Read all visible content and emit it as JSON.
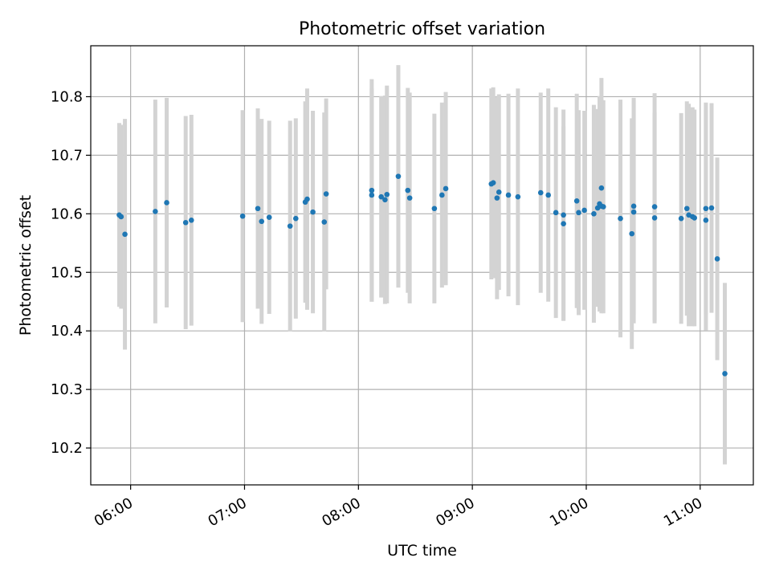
{
  "chart_data": {
    "type": "scatter",
    "title": "Photometric offset variation",
    "xlabel": "UTC time",
    "ylabel": "Photometric offset",
    "x_ticks": [
      "06:00",
      "07:00",
      "08:00",
      "09:00",
      "10:00",
      "11:00"
    ],
    "x_tick_hours": [
      6,
      7,
      8,
      9,
      10,
      11
    ],
    "y_ticks": [
      10.2,
      10.3,
      10.4,
      10.5,
      10.6,
      10.7,
      10.8
    ],
    "y_tick_labels": [
      "10.2",
      "10.3",
      "10.4",
      "10.5",
      "10.6",
      "10.7",
      "10.8"
    ],
    "xlim": [
      "05:39",
      "11:28"
    ],
    "ylim": [
      10.137,
      10.887
    ],
    "grid": true,
    "colors": {
      "marker": "#1f77b4",
      "errorbar": "#d3d3d3",
      "grid": "#b0b0b0"
    },
    "series": [
      {
        "x": [
          "05:54",
          "05:55",
          "05:57",
          "06:13",
          "06:19",
          "06:29",
          "06:32",
          "06:59",
          "07:07",
          "07:09",
          "07:13",
          "07:24",
          "07:27",
          "07:32",
          "07:33",
          "07:36",
          "07:42",
          "07:43",
          "08:07",
          "08:07",
          "08:12",
          "08:14",
          "08:15",
          "08:21",
          "08:26",
          "08:27",
          "08:40",
          "08:44",
          "08:46",
          "09:10",
          "09:11",
          "09:13",
          "09:14",
          "09:19",
          "09:24",
          "09:36",
          "09:40",
          "09:44",
          "09:48",
          "09:48",
          "09:55",
          "09:56",
          "09:59",
          "10:04",
          "10:06",
          "10:07",
          "10:08",
          "10:08",
          "10:09",
          "10:18",
          "10:24",
          "10:25",
          "10:25",
          "10:36",
          "10:36",
          "10:50",
          "10:53",
          "10:54",
          "10:56",
          "10:57",
          "11:03",
          "11:03",
          "11:06",
          "11:09",
          "11:13"
        ],
        "y": [
          10.598,
          10.595,
          10.565,
          10.604,
          10.619,
          10.585,
          10.589,
          10.596,
          10.609,
          10.587,
          10.594,
          10.579,
          10.592,
          10.62,
          10.625,
          10.603,
          10.586,
          10.634,
          10.64,
          10.632,
          10.629,
          10.624,
          10.633,
          10.664,
          10.64,
          10.627,
          10.609,
          10.632,
          10.643,
          10.651,
          10.653,
          10.627,
          10.637,
          10.632,
          10.629,
          10.636,
          10.632,
          10.602,
          10.583,
          10.598,
          10.622,
          10.602,
          10.606,
          10.6,
          10.61,
          10.617,
          10.613,
          10.644,
          10.612,
          10.592,
          10.566,
          10.603,
          10.613,
          10.612,
          10.593,
          10.592,
          10.609,
          10.598,
          10.595,
          10.593,
          10.589,
          10.609,
          10.61,
          10.523,
          10.327
        ],
        "err": [
          0.157,
          0.157,
          0.197,
          0.191,
          0.179,
          0.182,
          0.18,
          0.181,
          0.171,
          0.175,
          0.165,
          0.18,
          0.171,
          0.172,
          0.189,
          0.173,
          0.187,
          0.163,
          0.19,
          0.182,
          0.172,
          0.178,
          0.186,
          0.19,
          0.175,
          0.18,
          0.162,
          0.158,
          0.165,
          0.163,
          0.163,
          0.173,
          0.167,
          0.173,
          0.185,
          0.171,
          0.182,
          0.18,
          0.166,
          0.18,
          0.183,
          0.175,
          0.17,
          0.186,
          0.169,
          0.184,
          0.183,
          0.188,
          0.182,
          0.203,
          0.197,
          0.19,
          0.185,
          0.194,
          0.18,
          0.18,
          0.183,
          0.19,
          0.187,
          0.185,
          0.188,
          0.181,
          0.179,
          0.173,
          0.155
        ]
      }
    ]
  }
}
